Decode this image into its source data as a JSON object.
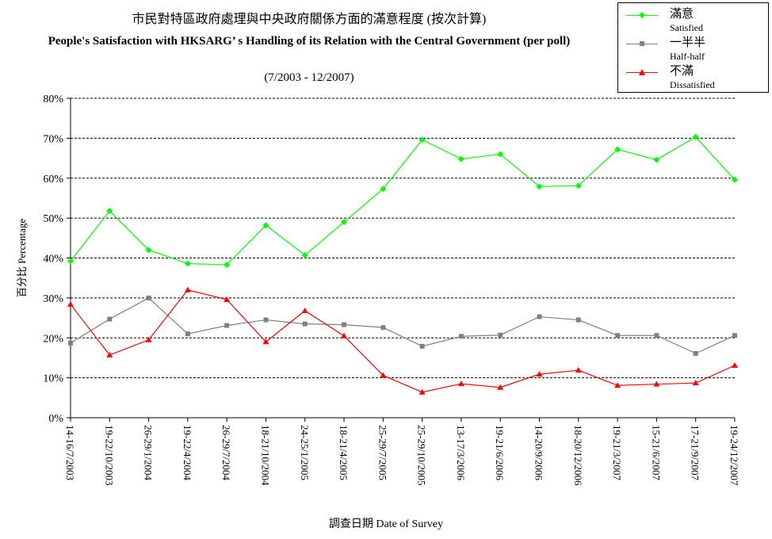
{
  "chart_data": {
    "type": "line",
    "title_zh": "市民對特區政府處理與中央政府關係方面的滿意程度 (按次計算)",
    "title": "People's Satisfaction with HKSARG’   s Handling of its Relation with the Central Government (per poll)",
    "subtitle": "(7/2003 - 12/2007)",
    "xlabel": "調查日期 Date of Survey",
    "ylabel": "百分比 Percentage",
    "ylim": [
      0,
      80
    ],
    "yticks": [
      "0%",
      "10%",
      "20%",
      "30%",
      "40%",
      "50%",
      "60%",
      "70%",
      "80%"
    ],
    "grid": true,
    "legend_position": "top-right",
    "categories": [
      "14-16/7/2003",
      "19-22/10/2003",
      "26-29/1/2004",
      "19-22/4/2004",
      "26-29/7/2004",
      "18-21/10/2004",
      "24-25/1/2005",
      "18-21/4/2005",
      "25-29/7/2005",
      "25-29/10/2005",
      "13-17/3/2006",
      "19-21/6/2006",
      "14-20/9/2006",
      "18-20/12/2006",
      "19-21/3/2007",
      "15-21/6/2007",
      "17-21/9/2007",
      "19-24/12/2007"
    ],
    "series": [
      {
        "name": "滿意",
        "name_en": "Satisfied",
        "color": "#00ff00",
        "marker": "diamond",
        "values": [
          39.2,
          51.8,
          42.0,
          38.6,
          38.3,
          48.2,
          40.7,
          49.0,
          57.3,
          69.6,
          64.8,
          66.0,
          57.9,
          58.1,
          67.2,
          64.6,
          70.3,
          59.6
        ]
      },
      {
        "name": "一半半",
        "name_en": "Half-half",
        "color": "#808080",
        "marker": "square",
        "values": [
          18.7,
          24.7,
          30.0,
          21.0,
          23.1,
          24.5,
          23.5,
          23.3,
          22.6,
          17.9,
          20.4,
          20.7,
          25.3,
          24.5,
          20.6,
          20.6,
          16.1,
          20.6
        ]
      },
      {
        "name": "不滿",
        "name_en": "Dissatisfied",
        "color": "#ff0000",
        "marker": "triangle",
        "values": [
          28.4,
          15.7,
          19.5,
          32.0,
          29.6,
          19.0,
          26.8,
          20.5,
          10.6,
          6.4,
          8.5,
          7.6,
          10.9,
          11.9,
          8.1,
          8.4,
          8.7,
          13.1
        ]
      }
    ]
  }
}
